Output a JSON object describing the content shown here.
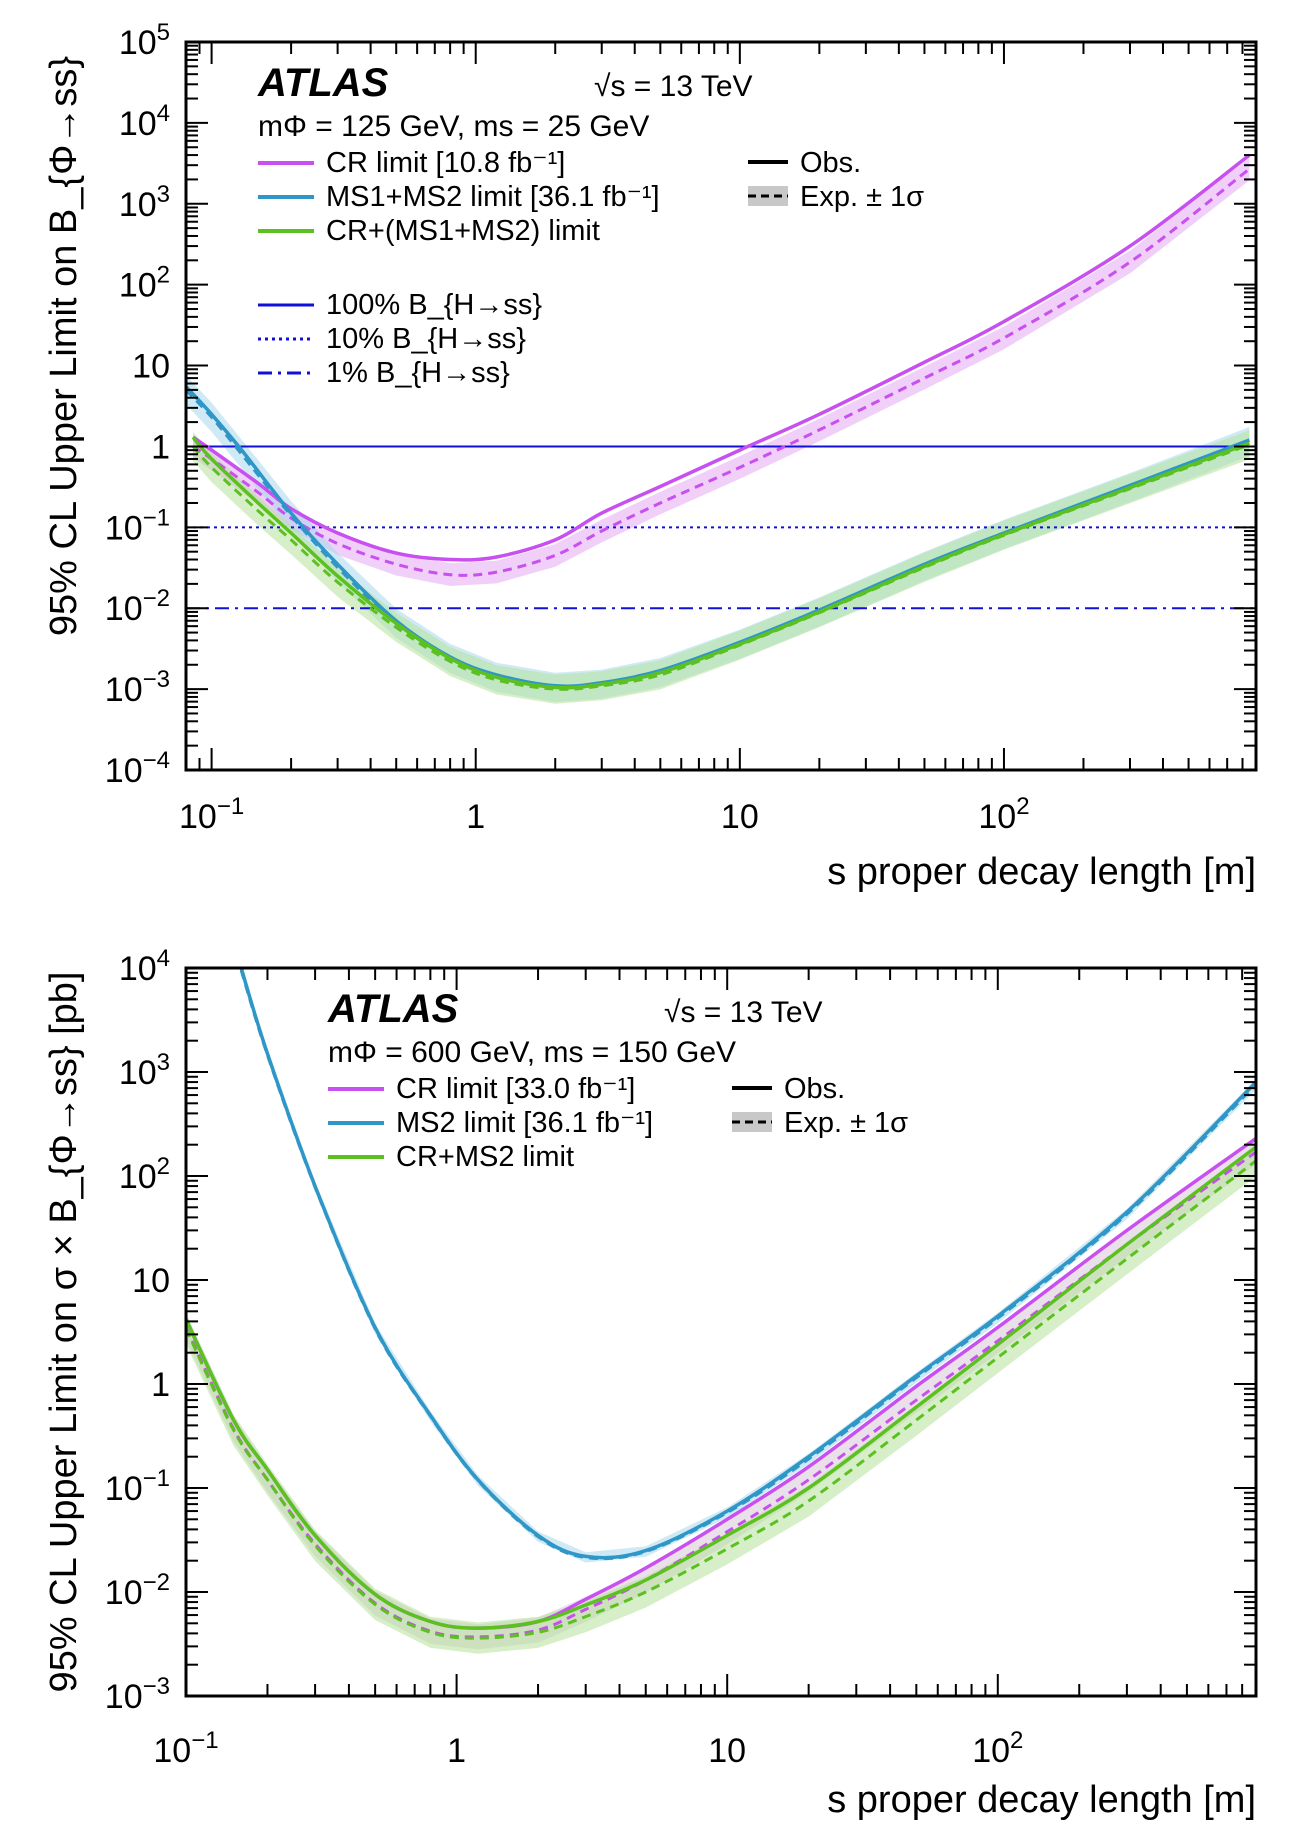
{
  "chart_data": [
    {
      "type": "line",
      "experiment": "ATLAS",
      "energy_prefix": "√s",
      "energy_rest": " = 13 TeV",
      "info": "mΦ = 125 GeV, ms = 25 GeV",
      "ylabel": "95% CL Upper Limit on B_{Φ→ss}",
      "xlabel": "s proper decay length [m]",
      "xscale": "log",
      "yscale": "log",
      "xlim": [
        0.08,
        900
      ],
      "ylim": [
        0.0001,
        100000
      ],
      "xticks": [
        "10⁻¹",
        "1",
        "10",
        "10²"
      ],
      "yticks": [
        "10⁻⁴",
        "10⁻³",
        "10⁻²",
        "10⁻¹",
        "1",
        "10",
        "10²",
        "10³",
        "10⁴",
        "10⁵"
      ],
      "legend_left": [
        {
          "text": "CR limit [10.8 fb⁻¹]",
          "color": "#c84ff0",
          "style": "solid"
        },
        {
          "text": "MS1+MS2 limit [36.1 fb⁻¹]",
          "color": "#2f96c8",
          "style": "solid"
        },
        {
          "text": "CR+(MS1+MS2) limit",
          "color": "#5cc021",
          "style": "solid"
        },
        {
          "text": "100% B_{H→ss}",
          "color": "#1010d8",
          "style": "solid"
        },
        {
          "text": "10% B_{H→ss}",
          "color": "#1010d8",
          "style": "dotted"
        },
        {
          "text": "1% B_{H→ss}",
          "color": "#1010d8",
          "style": "dashdot"
        }
      ],
      "legend_right": [
        {
          "text": "Obs.",
          "style": "solid"
        },
        {
          "text": "Exp. ± 1σ",
          "style": "dashed-band"
        }
      ],
      "hlines": [
        {
          "y": 1,
          "color": "#1010d8",
          "style": "solid"
        },
        {
          "y": 0.1,
          "color": "#1010d8",
          "style": "dotted"
        },
        {
          "y": 0.01,
          "color": "#1010d8",
          "style": "dashdot"
        }
      ],
      "series": [
        {
          "name": "CR limit",
          "color": "#c84ff0",
          "band_color": "#e3a7f3",
          "band_halfwidth_decades": 0.14,
          "x": [
            0.085,
            0.1,
            0.15,
            0.2,
            0.3,
            0.5,
            0.8,
            1.2,
            2,
            3,
            5,
            10,
            20,
            50,
            100,
            300,
            850
          ],
          "observed": [
            1.3,
            0.9,
            0.35,
            0.17,
            0.085,
            0.048,
            0.04,
            0.043,
            0.07,
            0.15,
            0.32,
            0.9,
            2.5,
            11,
            35,
            300,
            4000
          ],
          "expected": [
            1.0,
            0.7,
            0.27,
            0.13,
            0.063,
            0.035,
            0.026,
            0.028,
            0.045,
            0.09,
            0.2,
            0.55,
            1.6,
            7,
            22,
            190,
            2700
          ]
        },
        {
          "name": "MS1+MS2 limit",
          "color": "#2f96c8",
          "band_color": "#a9d8ec",
          "band_halfwidth_decades": 0.18,
          "x": [
            0.08,
            0.1,
            0.13,
            0.2,
            0.3,
            0.5,
            0.8,
            1.2,
            2,
            3,
            5,
            10,
            20,
            50,
            100,
            300,
            850
          ],
          "observed": [
            5.5,
            2.5,
            0.9,
            0.15,
            0.035,
            0.007,
            0.0025,
            0.0015,
            0.0011,
            0.0012,
            0.0017,
            0.0038,
            0.0095,
            0.035,
            0.085,
            0.33,
            1.2
          ],
          "expected": [
            5.0,
            2.3,
            0.8,
            0.14,
            0.032,
            0.0065,
            0.0024,
            0.0014,
            0.00105,
            0.00115,
            0.0016,
            0.0036,
            0.009,
            0.033,
            0.082,
            0.31,
            1.15
          ]
        },
        {
          "name": "CR+(MS1+MS2) limit",
          "color": "#5cc021",
          "band_color": "#b4e29a",
          "band_halfwidth_decades": 0.18,
          "x": [
            0.085,
            0.1,
            0.15,
            0.2,
            0.3,
            0.5,
            0.8,
            1.2,
            2,
            3,
            5,
            10,
            20,
            50,
            100,
            300,
            850
          ],
          "observed": [
            1.3,
            0.7,
            0.2,
            0.085,
            0.025,
            0.0065,
            0.0024,
            0.0014,
            0.00105,
            0.00115,
            0.0016,
            0.0036,
            0.009,
            0.033,
            0.082,
            0.31,
            1.1
          ],
          "expected": [
            1.0,
            0.55,
            0.16,
            0.07,
            0.021,
            0.0058,
            0.0022,
            0.0013,
            0.001,
            0.0011,
            0.0015,
            0.0035,
            0.0088,
            0.032,
            0.08,
            0.3,
            1.05
          ]
        }
      ]
    },
    {
      "type": "line",
      "experiment": "ATLAS",
      "energy_prefix": "√s",
      "energy_rest": " = 13 TeV",
      "info": "mΦ = 600 GeV, ms = 150 GeV",
      "ylabel": "95% CL Upper Limit on σ × B_{Φ→ss} [pb]",
      "xlabel": "s proper decay length [m]",
      "xscale": "log",
      "yscale": "log",
      "xlim": [
        0.1,
        900
      ],
      "ylim": [
        0.001,
        10000
      ],
      "xticks": [
        "10⁻¹",
        "1",
        "10",
        "10²"
      ],
      "yticks": [
        "10⁻³",
        "10⁻²",
        "10⁻¹",
        "1",
        "10",
        "10²",
        "10³",
        "10⁴"
      ],
      "legend_left": [
        {
          "text": "CR limit [33.0 fb⁻¹]",
          "color": "#c84ff0",
          "style": "solid"
        },
        {
          "text": "MS2 limit [36.1 fb⁻¹]",
          "color": "#2f96c8",
          "style": "solid"
        },
        {
          "text": "CR+MS2 limit",
          "color": "#5cc021",
          "style": "solid"
        }
      ],
      "legend_right": [
        {
          "text": "Obs.",
          "style": "solid"
        },
        {
          "text": "Exp. ± 1σ",
          "style": "dashed-band"
        }
      ],
      "hlines": [],
      "series": [
        {
          "name": "CR limit",
          "color": "#c84ff0",
          "band_color": "#d9c6d9",
          "band_halfwidth_decades": 0.12,
          "x": [
            0.1,
            0.15,
            0.2,
            0.3,
            0.5,
            0.8,
            1.2,
            2,
            3,
            5,
            10,
            20,
            50,
            100,
            300,
            900
          ],
          "observed": [
            4.2,
            0.45,
            0.15,
            0.035,
            0.0095,
            0.0052,
            0.0045,
            0.0052,
            0.0085,
            0.017,
            0.05,
            0.16,
            0.95,
            3.5,
            30,
            230
          ],
          "expected": [
            3.5,
            0.37,
            0.12,
            0.029,
            0.0078,
            0.0042,
            0.0037,
            0.0043,
            0.0068,
            0.013,
            0.038,
            0.12,
            0.7,
            2.6,
            22,
            170
          ]
        },
        {
          "name": "MS2 limit",
          "color": "#2f96c8",
          "band_color": "#a9d8ec",
          "band_halfwidth_decades": 0.05,
          "x": [
            0.16,
            0.2,
            0.3,
            0.5,
            0.8,
            1.2,
            2,
            3,
            5,
            10,
            20,
            50,
            100,
            300,
            900
          ],
          "observed": [
            10000,
            1500,
            80,
            3.5,
            0.5,
            0.12,
            0.035,
            0.022,
            0.025,
            0.06,
            0.2,
            1.2,
            4.5,
            45,
            800
          ],
          "expected": [
            9500,
            1450,
            78,
            3.4,
            0.49,
            0.118,
            0.034,
            0.0215,
            0.0245,
            0.058,
            0.19,
            1.15,
            4.3,
            43,
            760
          ]
        },
        {
          "name": "CR+MS2 limit",
          "color": "#5cc021",
          "band_color": "#b4e29a",
          "band_halfwidth_decades": 0.15,
          "x": [
            0.1,
            0.15,
            0.2,
            0.3,
            0.5,
            0.8,
            1.2,
            2,
            3,
            5,
            10,
            20,
            50,
            100,
            300,
            900
          ],
          "observed": [
            4.2,
            0.45,
            0.15,
            0.035,
            0.0095,
            0.0052,
            0.0045,
            0.0052,
            0.0075,
            0.013,
            0.035,
            0.1,
            0.6,
            2.4,
            22,
            190
          ],
          "expected": [
            3.4,
            0.36,
            0.12,
            0.028,
            0.0076,
            0.0041,
            0.0036,
            0.0041,
            0.0058,
            0.01,
            0.026,
            0.075,
            0.45,
            1.8,
            16,
            140
          ]
        }
      ]
    }
  ]
}
